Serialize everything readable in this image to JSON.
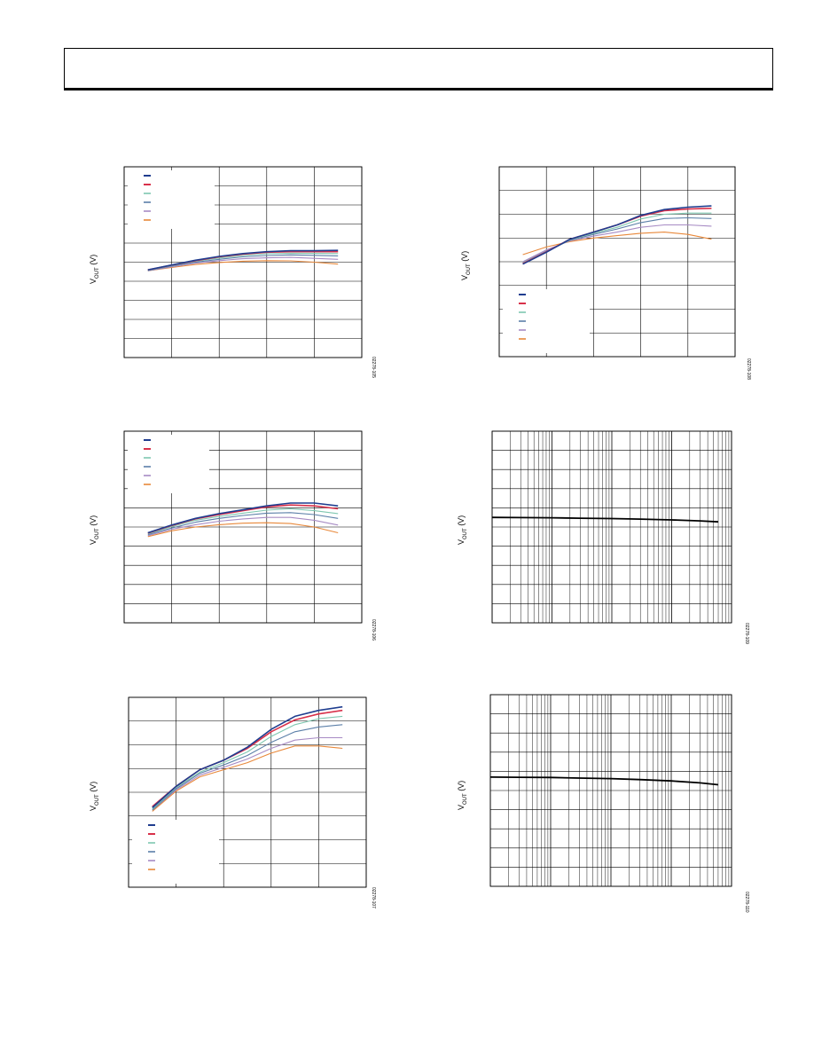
{
  "page": {
    "header": ""
  },
  "chart_data": [
    {
      "id": "c1",
      "type": "line",
      "ylabel": "V",
      "ylabel_sub": "OUT",
      "ylabel_suffix": " (V)",
      "code": "02278-105",
      "grid": true,
      "legend": "top-left",
      "x": [
        0.5,
        1.0,
        1.5,
        2.0,
        2.5,
        3.0,
        3.5,
        4.0,
        4.5
      ],
      "xlim": [
        0,
        5
      ],
      "ylim": [
        0,
        10
      ],
      "series": [
        {
          "color": "#1f3d8f",
          "values": [
            4.6,
            4.85,
            5.1,
            5.3,
            5.45,
            5.55,
            5.6,
            5.6,
            5.62
          ]
        },
        {
          "color": "#d8314a",
          "values": [
            4.6,
            4.84,
            5.08,
            5.28,
            5.42,
            5.52,
            5.55,
            5.55,
            5.55
          ]
        },
        {
          "color": "#7fc7b0",
          "values": [
            4.58,
            4.82,
            5.05,
            5.22,
            5.35,
            5.44,
            5.47,
            5.46,
            5.45
          ]
        },
        {
          "color": "#5b7fa8",
          "values": [
            4.56,
            4.8,
            5.0,
            5.15,
            5.28,
            5.35,
            5.38,
            5.36,
            5.33
          ]
        },
        {
          "color": "#a78bc4",
          "values": [
            4.55,
            4.76,
            4.95,
            5.08,
            5.18,
            5.23,
            5.25,
            5.2,
            5.15
          ]
        },
        {
          "color": "#e8883a",
          "values": [
            4.55,
            4.72,
            4.88,
            4.98,
            5.05,
            5.08,
            5.07,
            5.0,
            4.9
          ]
        }
      ]
    },
    {
      "id": "c2",
      "type": "line",
      "ylabel": "V",
      "ylabel_sub": "OUT",
      "ylabel_suffix": " (V)",
      "code": "02278-108",
      "grid": true,
      "legend": "bottom-left",
      "x": [
        0.5,
        1.0,
        1.5,
        2.0,
        2.5,
        3.0,
        3.5,
        4.0,
        4.5
      ],
      "xlim": [
        0,
        5
      ],
      "ylim": [
        0,
        8
      ],
      "series": [
        {
          "color": "#1f3d8f",
          "values": [
            3.9,
            4.4,
            4.95,
            5.25,
            5.55,
            5.95,
            6.2,
            6.3,
            6.35
          ]
        },
        {
          "color": "#d8314a",
          "values": [
            3.92,
            4.42,
            4.95,
            5.25,
            5.55,
            5.92,
            6.15,
            6.22,
            6.25
          ]
        },
        {
          "color": "#7fc7b0",
          "values": [
            3.95,
            4.42,
            4.92,
            5.2,
            5.45,
            5.8,
            6.0,
            6.05,
            6.05
          ]
        },
        {
          "color": "#5b7fa8",
          "values": [
            3.95,
            4.45,
            4.9,
            5.15,
            5.38,
            5.65,
            5.82,
            5.85,
            5.82
          ]
        },
        {
          "color": "#a78bc4",
          "values": [
            4.0,
            4.5,
            4.88,
            5.08,
            5.25,
            5.45,
            5.55,
            5.55,
            5.5
          ]
        },
        {
          "color": "#e8883a",
          "values": [
            4.3,
            4.62,
            4.85,
            5.0,
            5.1,
            5.2,
            5.25,
            5.15,
            4.95
          ]
        }
      ]
    },
    {
      "id": "c3",
      "type": "line",
      "ylabel": "V",
      "ylabel_sub": "OUT",
      "ylabel_suffix": " (V)",
      "code": "02278-106",
      "grid": true,
      "legend": "top-left",
      "x": [
        0.5,
        1.0,
        1.5,
        2.0,
        2.5,
        3.0,
        3.5,
        4.0,
        4.5
      ],
      "xlim": [
        0,
        5
      ],
      "ylim": [
        0,
        10
      ],
      "series": [
        {
          "color": "#1f3d8f",
          "values": [
            4.7,
            5.1,
            5.45,
            5.7,
            5.9,
            6.1,
            6.25,
            6.25,
            6.1
          ]
        },
        {
          "color": "#d8314a",
          "values": [
            4.68,
            5.08,
            5.42,
            5.65,
            5.85,
            6.05,
            6.15,
            6.1,
            5.95
          ]
        },
        {
          "color": "#7fc7b0",
          "values": [
            4.65,
            5.02,
            5.35,
            5.55,
            5.72,
            5.88,
            5.95,
            5.85,
            5.7
          ]
        },
        {
          "color": "#5b7fa8",
          "values": [
            4.6,
            4.95,
            5.25,
            5.45,
            5.6,
            5.72,
            5.75,
            5.65,
            5.45
          ]
        },
        {
          "color": "#a78bc4",
          "values": [
            4.55,
            4.88,
            5.12,
            5.3,
            5.42,
            5.5,
            5.5,
            5.35,
            5.1
          ]
        },
        {
          "color": "#e8883a",
          "values": [
            4.5,
            4.8,
            5.0,
            5.12,
            5.2,
            5.22,
            5.18,
            5.0,
            4.7
          ]
        }
      ]
    },
    {
      "id": "c4",
      "type": "line",
      "ylabel": "V",
      "ylabel_sub": "OUT",
      "ylabel_suffix": " (V)",
      "code": "02278-109",
      "grid": true,
      "xscale": "log",
      "x": [
        0.1,
        0.3,
        1,
        3,
        10,
        30,
        100,
        300,
        600
      ],
      "xlim": [
        0.1,
        1000
      ],
      "ylim": [
        0,
        10
      ],
      "series": [
        {
          "color": "#000000",
          "values": [
            5.5,
            5.49,
            5.48,
            5.46,
            5.44,
            5.41,
            5.37,
            5.32,
            5.27
          ]
        }
      ]
    },
    {
      "id": "c5",
      "type": "line",
      "ylabel": "V",
      "ylabel_sub": "OUT",
      "ylabel_suffix": " (V)",
      "code": "02278-107",
      "grid": true,
      "legend": "bottom-left",
      "x": [
        0.5,
        1.0,
        1.5,
        2.0,
        2.5,
        3.0,
        3.5,
        4.0,
        4.5
      ],
      "xlim": [
        0,
        5
      ],
      "ylim": [
        0,
        8
      ],
      "series": [
        {
          "color": "#1f3d8f",
          "values": [
            3.35,
            4.25,
            4.95,
            5.35,
            5.9,
            6.65,
            7.2,
            7.45,
            7.6
          ]
        },
        {
          "color": "#d8314a",
          "values": [
            3.4,
            4.25,
            4.95,
            5.35,
            5.85,
            6.55,
            7.05,
            7.3,
            7.45
          ]
        },
        {
          "color": "#7fc7b0",
          "values": [
            3.3,
            4.2,
            4.85,
            5.25,
            5.7,
            6.35,
            6.85,
            7.1,
            7.2
          ]
        },
        {
          "color": "#5b7fa8",
          "values": [
            3.25,
            4.15,
            4.8,
            5.15,
            5.55,
            6.1,
            6.55,
            6.75,
            6.85
          ]
        },
        {
          "color": "#a78bc4",
          "values": [
            3.25,
            4.1,
            4.72,
            5.05,
            5.4,
            5.85,
            6.2,
            6.3,
            6.3
          ]
        },
        {
          "color": "#e8883a",
          "values": [
            3.2,
            4.05,
            4.65,
            4.95,
            5.25,
            5.65,
            5.95,
            5.95,
            5.85
          ]
        }
      ]
    },
    {
      "id": "c6",
      "type": "line",
      "ylabel": "V",
      "ylabel_sub": "OUT",
      "ylabel_suffix": " (V)",
      "code": "02278-110",
      "grid": true,
      "xscale": "log",
      "x": [
        0.1,
        0.3,
        1,
        3,
        10,
        30,
        100,
        300,
        600
      ],
      "xlim": [
        0.1,
        1000
      ],
      "ylim": [
        0,
        10
      ],
      "series": [
        {
          "color": "#000000",
          "values": [
            5.7,
            5.69,
            5.68,
            5.65,
            5.62,
            5.57,
            5.5,
            5.4,
            5.3
          ]
        }
      ]
    }
  ]
}
